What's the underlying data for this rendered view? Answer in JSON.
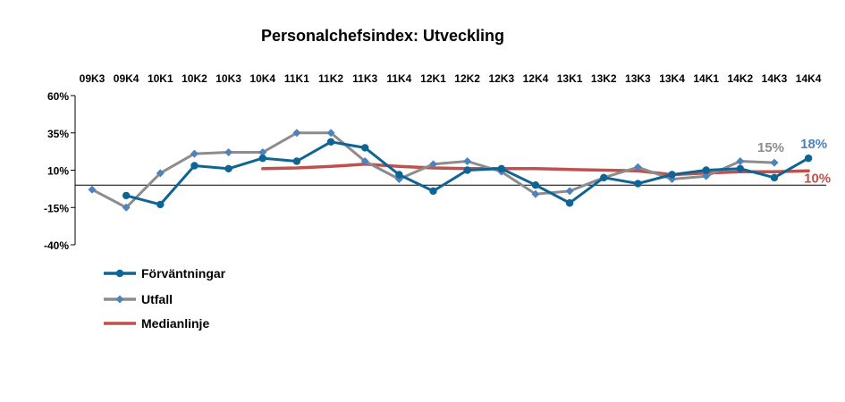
{
  "chart_data": {
    "type": "line",
    "title": "Personalchefsindex: Utveckling",
    "categories": [
      "09K3",
      "09K4",
      "10K1",
      "10K2",
      "10K3",
      "10K4",
      "11K1",
      "11K2",
      "11K3",
      "11K4",
      "12K1",
      "12K2",
      "12K3",
      "12K4",
      "13K1",
      "13K2",
      "13K3",
      "13K4",
      "14K1",
      "14K2",
      "14K3",
      "14K4"
    ],
    "yticks": [
      "60%",
      "35%",
      "10%",
      "-15%",
      "-40%"
    ],
    "ylim": [
      -40,
      60
    ],
    "x_axis_at": 0,
    "series": [
      {
        "name": "Förväntningar",
        "color": "#0E6494",
        "marker": "circle",
        "values": [
          null,
          -7,
          -13,
          13,
          11,
          18,
          16,
          29,
          25,
          7,
          -4,
          10,
          11,
          0,
          -12,
          5,
          1,
          7,
          10,
          11,
          5,
          18
        ]
      },
      {
        "name": "Utfall",
        "color": "#8C8C8C",
        "marker": "diamond",
        "values": [
          -3,
          -15,
          8,
          21,
          22,
          22,
          35,
          35,
          16,
          4,
          14,
          16,
          9,
          -6,
          -4,
          5,
          12,
          4,
          6,
          16,
          15,
          null
        ]
      },
      {
        "name": "Medianlinje",
        "color": "#C0504D",
        "marker": "none",
        "values": [
          null,
          null,
          null,
          null,
          null,
          11,
          11.5,
          12.5,
          14,
          12.5,
          11.5,
          11,
          11,
          11,
          10.5,
          10,
          9.5,
          7,
          8,
          9,
          9,
          9.5
        ]
      }
    ],
    "end_labels": [
      {
        "text": "15%",
        "series": "Utfall",
        "color": "#8C8C8C"
      },
      {
        "text": "18%",
        "series": "Förväntningar",
        "color": "#4F81BD"
      },
      {
        "text": "10%",
        "series": "Medianlinje",
        "color": "#C0504D"
      }
    ],
    "legend_position": "bottom-left"
  }
}
